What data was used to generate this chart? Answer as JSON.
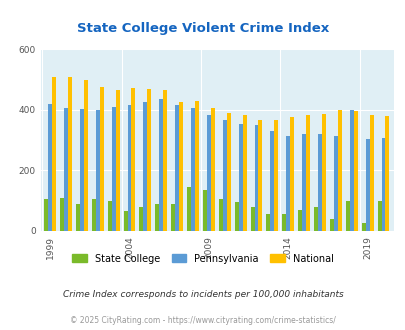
{
  "title": "State College Violent Crime Index",
  "years": [
    1999,
    2000,
    2001,
    2002,
    2003,
    2004,
    2005,
    2006,
    2007,
    2008,
    2009,
    2010,
    2011,
    2012,
    2013,
    2014,
    2015,
    2016,
    2017,
    2018,
    2019,
    2020
  ],
  "state_college": [
    105,
    110,
    90,
    105,
    100,
    65,
    80,
    90,
    90,
    145,
    135,
    105,
    95,
    80,
    55,
    55,
    70,
    80,
    40,
    100,
    25,
    100
  ],
  "pennsylvania": [
    420,
    408,
    402,
    400,
    410,
    415,
    425,
    438,
    415,
    407,
    384,
    368,
    355,
    350,
    330,
    313,
    320,
    320,
    313,
    400,
    305,
    307
  ],
  "national": [
    510,
    510,
    500,
    475,
    465,
    472,
    470,
    465,
    425,
    430,
    405,
    390,
    385,
    368,
    366,
    376,
    383,
    388,
    400,
    396,
    383,
    379
  ],
  "bar_colors": {
    "state_college": "#7aba2a",
    "pennsylvania": "#5b9bd5",
    "national": "#ffc000"
  },
  "plot_bg": "#e0eff5",
  "title_color": "#1565c0",
  "ylim": [
    0,
    600
  ],
  "yticks": [
    0,
    200,
    400,
    600
  ],
  "legend_labels": [
    "State College",
    "Pennsylvania",
    "National"
  ],
  "footnote1": "Crime Index corresponds to incidents per 100,000 inhabitants",
  "footnote2": "© 2025 CityRating.com - https://www.cityrating.com/crime-statistics/",
  "xtick_years": [
    1999,
    2004,
    2009,
    2014,
    2019
  ],
  "bar_width": 0.25
}
